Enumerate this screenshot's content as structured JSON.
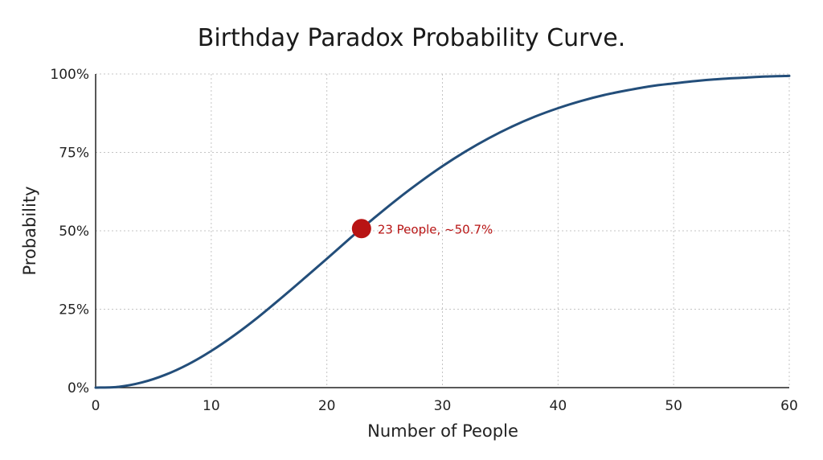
{
  "chart_data": {
    "type": "line",
    "title": "Birthday Paradox Probability Curve.",
    "xlabel": "Number of People",
    "ylabel": "Probability",
    "xlim": [
      0,
      60
    ],
    "ylim": [
      0,
      100
    ],
    "x_ticks": [
      0,
      10,
      20,
      30,
      40,
      50,
      60
    ],
    "x_tick_labels": [
      "0",
      "10",
      "20",
      "30",
      "40",
      "50",
      "60"
    ],
    "y_ticks": [
      0,
      25,
      50,
      75,
      100
    ],
    "y_tick_labels": [
      "0%",
      "25%",
      "50%",
      "75%",
      "100%"
    ],
    "grid": true,
    "series": [
      {
        "color": "#234e7a",
        "x": [
          0,
          2,
          4,
          6,
          8,
          10,
          12,
          14,
          16,
          18,
          20,
          22,
          23,
          24,
          26,
          28,
          30,
          32,
          34,
          36,
          38,
          40,
          42,
          44,
          46,
          48,
          50,
          52,
          54,
          56,
          58,
          60
        ],
        "y": [
          0,
          0.27,
          1.64,
          4.05,
          7.43,
          11.69,
          16.7,
          22.3,
          28.4,
          34.7,
          41.1,
          47.6,
          50.7,
          53.8,
          59.8,
          65.4,
          70.6,
          75.3,
          79.5,
          83.2,
          86.4,
          89.1,
          91.4,
          93.3,
          94.8,
          96.1,
          97.0,
          97.8,
          98.4,
          98.8,
          99.2,
          99.4
        ]
      }
    ],
    "highlight": {
      "x": 23,
      "y": 50.7,
      "color": "#b81414",
      "label": "23 People, ~50.7%"
    }
  }
}
